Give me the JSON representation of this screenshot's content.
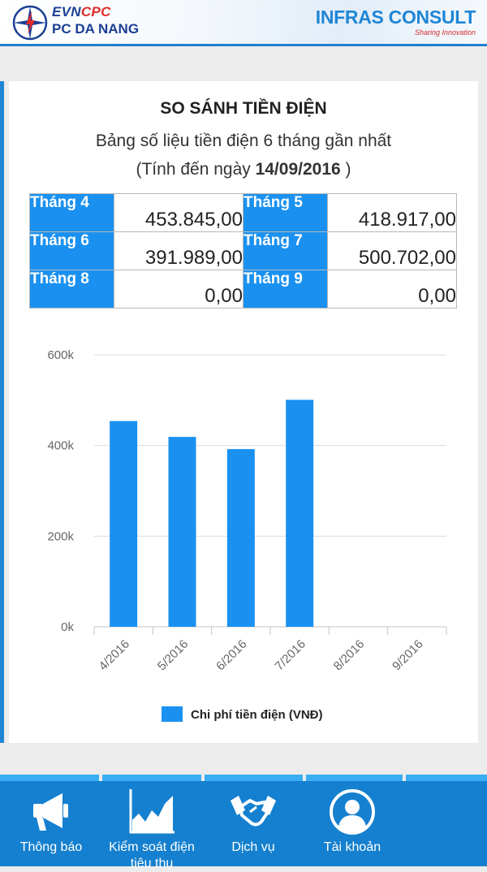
{
  "header": {
    "brand_evn": "EVN",
    "brand_cpc": "CPC",
    "brand_unit": "PC DA NANG",
    "partner_name": "INFRAS CONSULT",
    "partner_tagline": "Sharing Innovation"
  },
  "card": {
    "title": "SO SÁNH TIỀN ĐIỆN",
    "subtitle": "Bảng số liệu tiền điện 6 tháng gần nhất",
    "date_prefix": "(Tính đến ngày ",
    "date_value": "14/09/2016",
    "date_suffix": " )"
  },
  "months_table": [
    {
      "label": "Tháng 4",
      "value": "453.845,00"
    },
    {
      "label": "Tháng 5",
      "value": "418.917,00"
    },
    {
      "label": "Tháng 6",
      "value": "391.989,00"
    },
    {
      "label": "Tháng 7",
      "value": "500.702,00"
    },
    {
      "label": "Tháng 8",
      "value": "0,00"
    },
    {
      "label": "Tháng 9",
      "value": "0,00"
    }
  ],
  "chart_data": {
    "type": "bar",
    "categories": [
      "4/2016",
      "5/2016",
      "6/2016",
      "7/2016",
      "8/2016",
      "9/2016"
    ],
    "series": [
      {
        "name": "Chi phí tiền điện (VNĐ)",
        "values": [
          453845,
          418917,
          391989,
          500702,
          0,
          0
        ]
      }
    ],
    "yticks": [
      0,
      200000,
      400000,
      600000
    ],
    "ytick_labels": [
      "0k",
      "200k",
      "400k",
      "600k"
    ],
    "ylim": [
      0,
      600000
    ],
    "grid": true,
    "legend": "bottom",
    "title": "",
    "xlabel": "",
    "ylabel": ""
  },
  "colors": {
    "accent": "#1a91f0",
    "nav_bg": "#1580cf",
    "nav_strip": "#3aaef2",
    "header_border": "#1f7fcf",
    "brand_navy": "#1b3f95",
    "brand_red": "#e02a2a",
    "partner_blue": "#1f86d6"
  },
  "nav": [
    {
      "icon": "megaphone-icon",
      "label": "Thông báo"
    },
    {
      "icon": "consumption-chart-icon",
      "label": "Kiểm soát điện tiêu thụ"
    },
    {
      "icon": "handshake-icon",
      "label": "Dịch vụ"
    },
    {
      "icon": "user-account-icon",
      "label": "Tài khoản"
    }
  ]
}
